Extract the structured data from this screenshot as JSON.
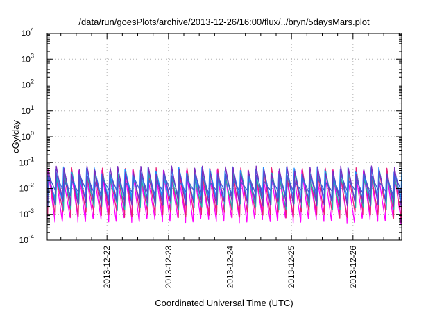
{
  "chart_data": {
    "type": "line",
    "title": "/data/run/goesPlots/archive/2013-12-26/16:00/flux/../bryn/5daysMars.plot",
    "xlabel": "Coordinated Universal Time (UTC)",
    "ylabel": "cGy/day",
    "yscale": "log",
    "ylim": [
      0.0001,
      10000
    ],
    "xlim": [
      "2013-12-21T00:40",
      "2013-12-26T19:00"
    ],
    "x_ticks": [
      "2013-12-22",
      "2013-12-23",
      "2013-12-24",
      "2013-12-25",
      "2013-12-26"
    ],
    "y_ticks": [
      {
        "base": "10",
        "exp": "-4"
      },
      {
        "base": "10",
        "exp": "-3"
      },
      {
        "base": "10",
        "exp": "-2"
      },
      {
        "base": "10",
        "exp": "-1"
      },
      {
        "base": "10",
        "exp": "0"
      },
      {
        "base": "10",
        "exp": "1"
      },
      {
        "base": "10",
        "exp": "2"
      },
      {
        "base": "10",
        "exp": "3"
      },
      {
        "base": "10",
        "exp": "4"
      }
    ],
    "grid": true,
    "legend": "none",
    "sawtooth_period_hours": 3,
    "series": [
      {
        "color": "#ff00ff",
        "peak": 0.045,
        "trough": 0.0006
      },
      {
        "color": "#e8207a",
        "peak": 0.055,
        "trough": 0.001
      },
      {
        "color": "#20b2aa",
        "peak": 0.04,
        "trough": 0.002
      },
      {
        "color": "#1e90ff",
        "peak": 0.06,
        "trough": 0.004
      },
      {
        "color": "#7b2cbf",
        "peak": 0.065,
        "trough": 0.0025
      },
      {
        "color": "#4060d0",
        "peak": 0.03,
        "trough": 0.006
      }
    ]
  }
}
